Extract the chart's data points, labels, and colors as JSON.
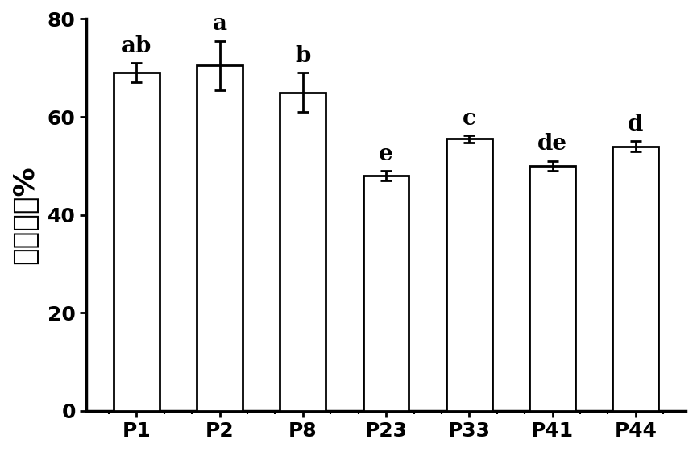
{
  "categories": [
    "P1",
    "P2",
    "P8",
    "P23",
    "P33",
    "P41",
    "P44"
  ],
  "values": [
    69.0,
    70.5,
    65.0,
    48.0,
    55.5,
    50.0,
    54.0
  ],
  "errors": [
    2.0,
    5.0,
    4.0,
    1.0,
    0.7,
    1.0,
    1.0
  ],
  "labels": [
    "ab",
    "a",
    "b",
    "e",
    "c",
    "de",
    "d"
  ],
  "ylabel": "抑菌率／%",
  "ylim": [
    0,
    80
  ],
  "yticks": [
    0,
    20,
    40,
    60,
    80
  ],
  "bar_color": "#ffffff",
  "bar_edgecolor": "#000000",
  "bar_linewidth": 2.0,
  "error_color": "#000000",
  "error_linewidth": 2.0,
  "error_capsize": 5,
  "tick_fontsize": 18,
  "ylabel_fontsize": 26,
  "stat_label_fontsize": 20,
  "background_color": "#ffffff"
}
